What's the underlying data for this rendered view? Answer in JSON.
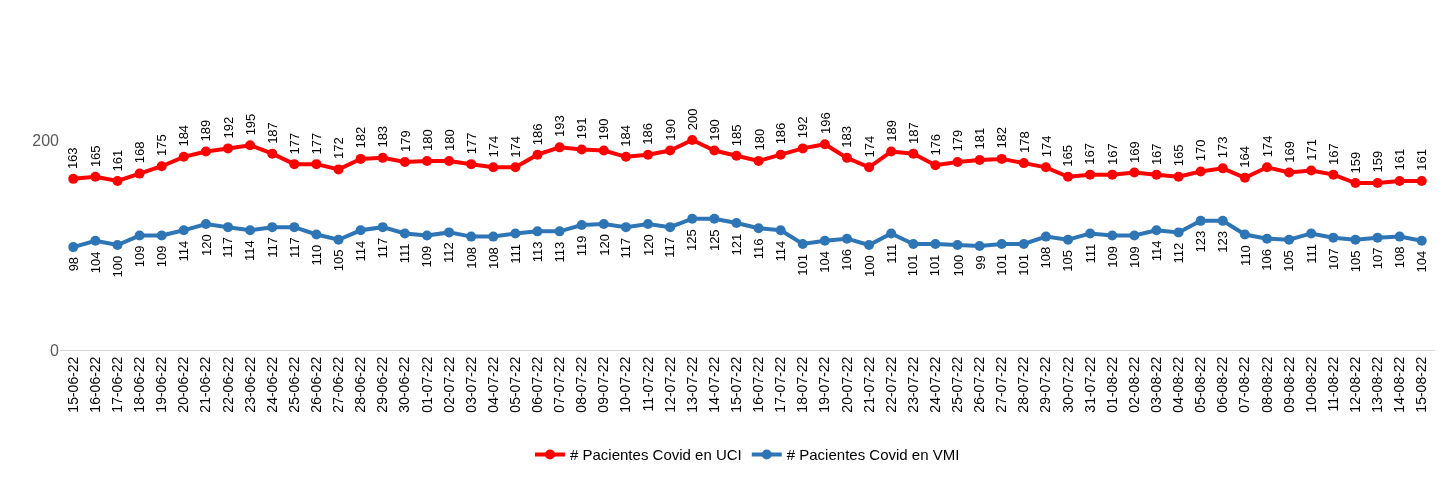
{
  "chart_data": {
    "type": "line",
    "categories": [
      "15-06-22",
      "16-06-22",
      "17-06-22",
      "18-06-22",
      "19-06-22",
      "20-06-22",
      "21-06-22",
      "22-06-22",
      "23-06-22",
      "24-06-22",
      "25-06-22",
      "26-06-22",
      "27-06-22",
      "28-06-22",
      "29-06-22",
      "30-06-22",
      "01-07-22",
      "02-07-22",
      "03-07-22",
      "04-07-22",
      "05-07-22",
      "06-07-22",
      "07-07-22",
      "08-07-22",
      "09-07-22",
      "10-07-22",
      "11-07-22",
      "12-07-22",
      "13-07-22",
      "14-07-22",
      "15-07-22",
      "16-07-22",
      "17-07-22",
      "18-07-22",
      "19-07-22",
      "20-07-22",
      "21-07-22",
      "22-07-22",
      "23-07-22",
      "24-07-22",
      "25-07-22",
      "26-07-22",
      "27-07-22",
      "28-07-22",
      "29-07-22",
      "30-07-22",
      "31-07-22",
      "01-08-22",
      "02-08-22",
      "03-08-22",
      "04-08-22",
      "05-08-22",
      "06-08-22",
      "07-08-22",
      "08-08-22",
      "09-08-22",
      "10-08-22",
      "11-08-22",
      "12-08-22",
      "13-08-22",
      "14-08-22",
      "15-08-22"
    ],
    "series": [
      {
        "name": "# Pacientes Covid en UCI",
        "color": "#ff0000",
        "values": [
          163,
          165,
          161,
          168,
          175,
          184,
          189,
          192,
          195,
          187,
          177,
          177,
          172,
          182,
          183,
          179,
          180,
          180,
          177,
          174,
          174,
          186,
          193,
          191,
          190,
          184,
          186,
          190,
          200,
          190,
          185,
          180,
          186,
          192,
          196,
          183,
          174,
          189,
          187,
          176,
          179,
          181,
          182,
          178,
          174,
          165,
          167,
          167,
          169,
          167,
          165,
          170,
          173,
          164,
          174,
          169,
          171,
          167,
          159,
          159,
          161,
          161
        ]
      },
      {
        "name": "# Pacientes Covid en VMI",
        "color": "#2e75b6",
        "values": [
          98,
          104,
          100,
          109,
          109,
          114,
          120,
          117,
          114,
          117,
          117,
          110,
          105,
          114,
          117,
          111,
          109,
          112,
          108,
          108,
          111,
          113,
          113,
          119,
          120,
          117,
          120,
          117,
          125,
          125,
          121,
          116,
          114,
          101,
          104,
          106,
          100,
          111,
          101,
          101,
          100,
          99,
          101,
          101,
          108,
          105,
          111,
          109,
          109,
          114,
          112,
          123,
          123,
          110,
          106,
          105,
          111,
          107,
          105,
          107,
          108,
          104
        ]
      }
    ],
    "ylim": [
      0,
      200
    ],
    "yticks": [
      0,
      200
    ],
    "legend": "bottom",
    "marker": "circle",
    "line_style": "solid",
    "data_labels": true
  }
}
